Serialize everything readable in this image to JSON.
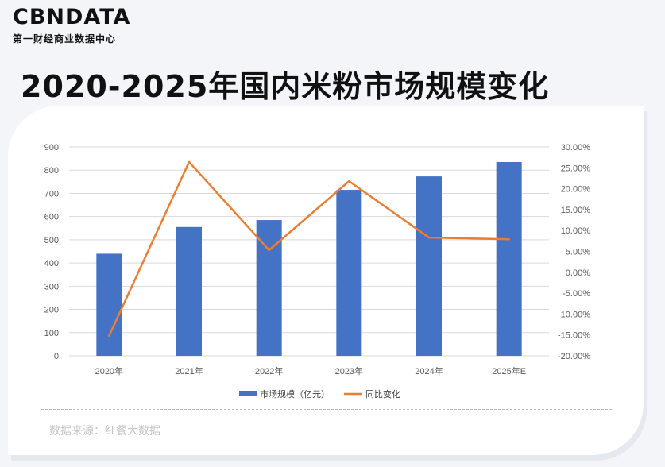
{
  "brand": {
    "logo_text": "CBNDATA",
    "tagline": "第一财经商业数据中心"
  },
  "page_title": "2020-2025年国内米粉市场规模变化",
  "source_text": "数据来源：红餐大数据",
  "colors": {
    "bar": "#4472c4",
    "line": "#ed7d31",
    "grid": "#d9d9d9",
    "card": "#ffffff",
    "background": "#f4f5f9"
  },
  "chart_data": {
    "type": "bar",
    "categories": [
      "2020年",
      "2021年",
      "2022年",
      "2023年",
      "2024年",
      "2025年E"
    ],
    "series": [
      {
        "name": "市场规模（亿元）",
        "type": "bar",
        "axis": "left",
        "values": [
          440,
          555,
          585,
          715,
          773,
          835
        ]
      },
      {
        "name": "同比变化",
        "type": "line",
        "axis": "right",
        "values": [
          -15.2,
          26.4,
          5.3,
          21.8,
          8.3,
          7.9
        ]
      }
    ],
    "y_left": {
      "min": 0,
      "max": 900,
      "step": 100,
      "ticks": [
        "0",
        "100",
        "200",
        "300",
        "400",
        "500",
        "600",
        "700",
        "800",
        "900"
      ]
    },
    "y_right": {
      "min": -20,
      "max": 30,
      "step": 5,
      "ticks": [
        "-20.00%",
        "-15.00%",
        "-10.00%",
        "-5.00%",
        "0.00%",
        "5.00%",
        "10.00%",
        "15.00%",
        "20.00%",
        "25.00%",
        "30.00%"
      ]
    },
    "grid": true,
    "legend_position": "bottom"
  }
}
